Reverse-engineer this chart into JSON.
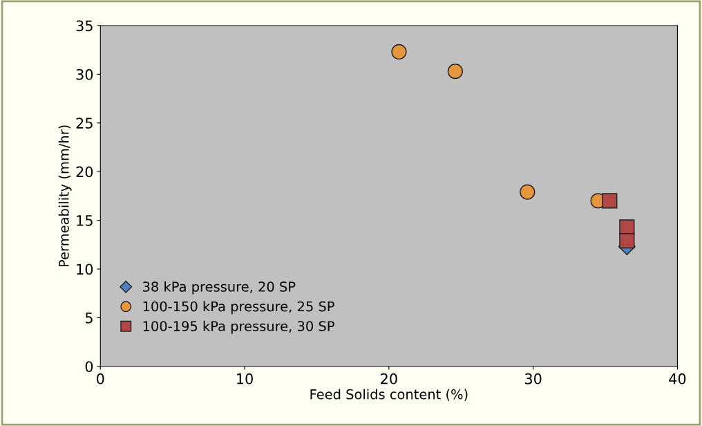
{
  "chart_data": {
    "type": "scatter",
    "xlabel": "Feed Solids content (%)",
    "ylabel": "Permeability (mm/hr)",
    "xlim": [
      0,
      40
    ],
    "xticks": [
      0,
      10,
      20,
      30,
      40
    ],
    "ylim": [
      0,
      35
    ],
    "yticks": [
      0,
      5,
      10,
      15,
      20,
      25,
      30,
      35
    ],
    "grid": false,
    "legend": "bottom left",
    "series": [
      {
        "name": "38 kPa pressure, 20 SP",
        "color": "#4f81bd",
        "marker": "diamond",
        "x": [
          36.5
        ],
        "values": [
          12.3
        ]
      },
      {
        "name": "100-150 kPa pressure, 25 SP",
        "color": "#e6963c",
        "marker": "circle",
        "x": [
          20.7,
          24.6,
          29.6,
          34.5
        ],
        "values": [
          32.3,
          30.3,
          17.9,
          17.0
        ]
      },
      {
        "name": "100-195 kPa pressure, 30 SP",
        "color": "#b04848",
        "marker": "square",
        "x": [
          35.3,
          36.5,
          36.5
        ],
        "values": [
          17.0,
          14.3,
          12.9
        ]
      }
    ]
  }
}
